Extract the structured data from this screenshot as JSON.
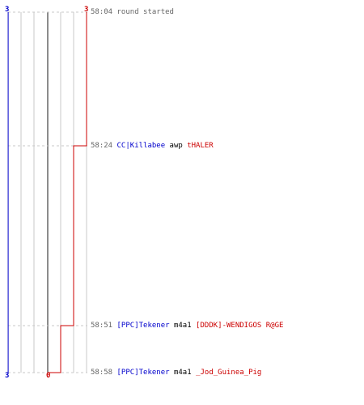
{
  "scores": {
    "blue_start": "3",
    "red_start": "3",
    "blue_end": "3",
    "red_end": "0"
  },
  "colors": {
    "blue": "#0000cc",
    "red": "#cc0000",
    "time": "#666666",
    "plain": "#000000",
    "grid": "#c8c8c8",
    "center": "#666666"
  },
  "events": [
    {
      "time": "58:04",
      "parts": [
        {
          "text": "round started",
          "team": "time"
        }
      ]
    },
    {
      "time": "58:24",
      "parts": [
        {
          "text": "CC|Killabee",
          "team": "blue"
        },
        {
          "text": " awp ",
          "team": "plain"
        },
        {
          "text": "tHALER",
          "team": "red"
        }
      ]
    },
    {
      "time": "58:51",
      "parts": [
        {
          "text": "[PPC]Tekener",
          "team": "blue"
        },
        {
          "text": " m4a1 ",
          "team": "plain"
        },
        {
          "text": "[DDDK]-WENDIGOS R@GE",
          "team": "red"
        }
      ]
    },
    {
      "time": "58:58",
      "parts": [
        {
          "text": "[PPC]Tekener",
          "team": "blue"
        },
        {
          "text": " m4a1 ",
          "team": "plain"
        },
        {
          "text": "_Jod_Guinea_Pig",
          "team": "red"
        }
      ]
    }
  ],
  "timeline_data": {
    "blue_alive": [
      3,
      3,
      3,
      3
    ],
    "red_alive": [
      3,
      2,
      1,
      0
    ]
  }
}
